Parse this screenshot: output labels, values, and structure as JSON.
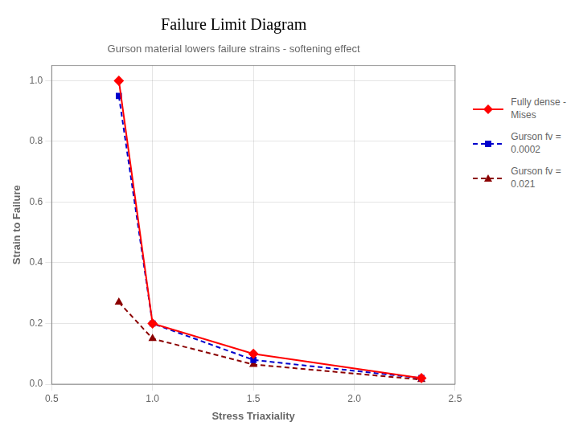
{
  "chart_data": {
    "type": "line",
    "title": "Failure Limit Diagram",
    "subtitle": "Gurson material lowers failure strains - softening effect",
    "x_label": "Stress Triaxiality",
    "y_label": "Strain to Failure",
    "x": [
      0.833,
      1.0,
      1.5,
      2.333
    ],
    "series": [
      {
        "name": "Fully dense -\nMises",
        "color": "#ff0000",
        "marker": "diamond",
        "line_style": "solid",
        "values": [
          1.0,
          0.2,
          0.1,
          0.02
        ]
      },
      {
        "name": "Gurson  fv =\n0.0002",
        "color": "#0000cc",
        "marker": "square",
        "line_style": "dashed",
        "values": [
          0.95,
          0.2,
          0.08,
          0.02
        ]
      },
      {
        "name": "Gurson  fv =\n0.021",
        "color": "#8b0000",
        "marker": "triangle",
        "line_style": "dashed",
        "values": [
          0.27,
          0.15,
          0.065,
          0.015
        ]
      }
    ],
    "xlim": [
      0.5,
      2.5
    ],
    "xticks": [
      0.5,
      {
        "value": 1.0,
        "label": "1.0"
      },
      1.5,
      {
        "value": 2.0,
        "label": "2.0"
      },
      2.5
    ],
    "ylim": [
      0.0,
      1.05
    ],
    "yticks": [
      {
        "value": 0,
        "label": "0.0"
      },
      0.2,
      0.4,
      0.6,
      0.8,
      {
        "value": 1.0,
        "label": "1.0"
      }
    ],
    "grid": true,
    "legend": "right"
  }
}
